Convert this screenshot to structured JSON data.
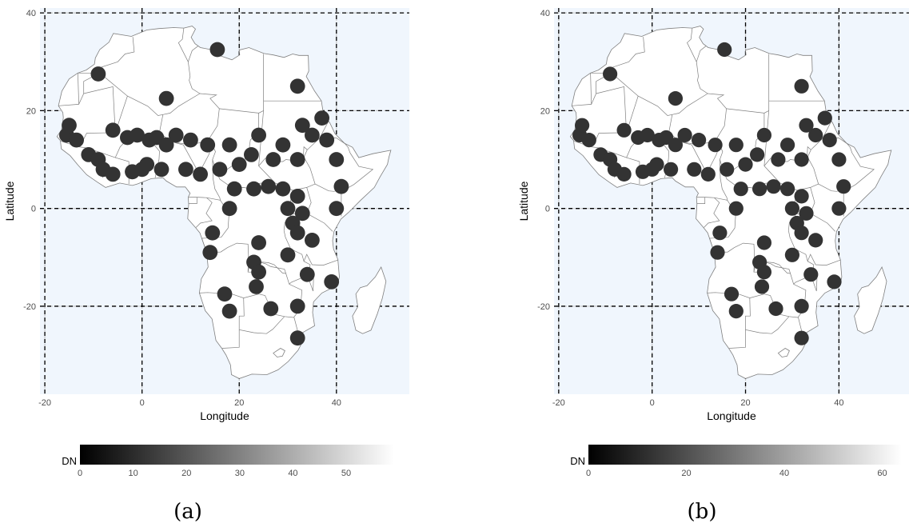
{
  "figure": {
    "colors": {
      "panel_background": "#f0f6fd",
      "land_fill": "#ffffff",
      "border_line": "#7f7f7f",
      "hotspot_fill": "#333333",
      "major_grid": "#000000",
      "minor_grid": "#c8c8c8",
      "legend_low": "#000000",
      "legend_high": "#ffffff"
    },
    "panels": [
      {
        "caption": "(a)",
        "chart_data": {
          "type": "map",
          "region": "Africa",
          "xlabel": "Longitude",
          "ylabel": "Latitude",
          "xlim": [
            -21,
            55
          ],
          "ylim": [
            -38,
            41
          ],
          "x_ticks": [
            -20,
            0,
            20,
            40
          ],
          "y_ticks": [
            -20,
            0,
            20,
            40
          ],
          "x_tick_labels": [
            "-20",
            "0",
            "20",
            "40"
          ],
          "y_tick_labels": [
            "-20",
            "0",
            "20",
            "40"
          ],
          "grid": true,
          "legend": {
            "title": "DN",
            "position": "bottom",
            "range": [
              0,
              59
            ],
            "ticks": [
              0,
              10,
              20,
              30,
              40,
              50
            ],
            "tick_labels": [
              "0",
              "10",
              "20",
              "30",
              "40",
              "50"
            ]
          },
          "hotspots": [
            [
              -15.5,
              15
            ],
            [
              -15,
              17
            ],
            [
              -13.5,
              14
            ],
            [
              -11,
              11
            ],
            [
              -9,
              10
            ],
            [
              -8,
              8
            ],
            [
              -6,
              7
            ],
            [
              -9,
              27.5
            ],
            [
              -6,
              16
            ],
            [
              -3,
              14.5
            ],
            [
              -1,
              15
            ],
            [
              1.5,
              14
            ],
            [
              3,
              14.5
            ],
            [
              5,
              13
            ],
            [
              -2,
              7.5
            ],
            [
              0,
              8
            ],
            [
              1,
              9
            ],
            [
              4,
              8
            ],
            [
              5,
              22.5
            ],
            [
              7,
              15
            ],
            [
              10,
              14
            ],
            [
              13.5,
              13
            ],
            [
              9,
              8
            ],
            [
              12,
              7
            ],
            [
              16,
              8
            ],
            [
              20,
              9
            ],
            [
              22.5,
              11
            ],
            [
              24,
              15
            ],
            [
              18,
              13
            ],
            [
              27,
              10
            ],
            [
              29,
              13
            ],
            [
              32,
              10
            ],
            [
              35,
              15
            ],
            [
              33,
              17
            ],
            [
              37,
              18.5
            ],
            [
              38,
              14
            ],
            [
              40,
              10
            ],
            [
              15.5,
              32.5
            ],
            [
              32,
              25
            ],
            [
              19,
              4
            ],
            [
              23,
              4
            ],
            [
              26,
              4.5
            ],
            [
              29,
              4
            ],
            [
              32,
              2.5
            ],
            [
              30,
              0
            ],
            [
              33,
              -1
            ],
            [
              31,
              -3
            ],
            [
              32,
              -5
            ],
            [
              18,
              0
            ],
            [
              14.5,
              -5
            ],
            [
              14,
              -9
            ],
            [
              24,
              -7
            ],
            [
              30,
              -9.5
            ],
            [
              35,
              -6.5
            ],
            [
              41,
              4.5
            ],
            [
              40,
              0
            ],
            [
              23,
              -11
            ],
            [
              24,
              -13
            ],
            [
              23.5,
              -16
            ],
            [
              17,
              -17.5
            ],
            [
              18,
              -21
            ],
            [
              26.5,
              -20.5
            ],
            [
              32,
              -20
            ],
            [
              34,
              -13.5
            ],
            [
              39,
              -15
            ],
            [
              32,
              -26.5
            ]
          ]
        }
      },
      {
        "caption": "(b)",
        "chart_data": {
          "type": "map",
          "region": "Africa",
          "xlabel": "Longitude",
          "ylabel": "Latitude",
          "xlim": [
            -21,
            55
          ],
          "ylim": [
            -38,
            41
          ],
          "x_ticks": [
            -20,
            0,
            20,
            40
          ],
          "y_ticks": [
            -20,
            0,
            20,
            40
          ],
          "x_tick_labels": [
            "-20",
            "0",
            "20",
            "40"
          ],
          "y_tick_labels": [
            "-20",
            "0",
            "20",
            "40"
          ],
          "grid": true,
          "legend": {
            "title": "DN",
            "position": "bottom",
            "range": [
              0,
              64
            ],
            "ticks": [
              0,
              20,
              40,
              60
            ],
            "tick_labels": [
              "0",
              "20",
              "40",
              "60"
            ]
          },
          "hotspots": [
            [
              -15.5,
              15
            ],
            [
              -15,
              17
            ],
            [
              -13.5,
              14
            ],
            [
              -11,
              11
            ],
            [
              -9,
              10
            ],
            [
              -8,
              8
            ],
            [
              -6,
              7
            ],
            [
              -9,
              27.5
            ],
            [
              -6,
              16
            ],
            [
              -3,
              14.5
            ],
            [
              -1,
              15
            ],
            [
              1.5,
              14
            ],
            [
              3,
              14.5
            ],
            [
              5,
              13
            ],
            [
              -2,
              7.5
            ],
            [
              0,
              8
            ],
            [
              1,
              9
            ],
            [
              4,
              8
            ],
            [
              5,
              22.5
            ],
            [
              7,
              15
            ],
            [
              10,
              14
            ],
            [
              13.5,
              13
            ],
            [
              9,
              8
            ],
            [
              12,
              7
            ],
            [
              16,
              8
            ],
            [
              20,
              9
            ],
            [
              22.5,
              11
            ],
            [
              24,
              15
            ],
            [
              18,
              13
            ],
            [
              27,
              10
            ],
            [
              29,
              13
            ],
            [
              32,
              10
            ],
            [
              35,
              15
            ],
            [
              33,
              17
            ],
            [
              37,
              18.5
            ],
            [
              38,
              14
            ],
            [
              40,
              10
            ],
            [
              15.5,
              32.5
            ],
            [
              32,
              25
            ],
            [
              19,
              4
            ],
            [
              23,
              4
            ],
            [
              26,
              4.5
            ],
            [
              29,
              4
            ],
            [
              32,
              2.5
            ],
            [
              30,
              0
            ],
            [
              33,
              -1
            ],
            [
              31,
              -3
            ],
            [
              32,
              -5
            ],
            [
              18,
              0
            ],
            [
              14.5,
              -5
            ],
            [
              14,
              -9
            ],
            [
              24,
              -7
            ],
            [
              30,
              -9.5
            ],
            [
              35,
              -6.5
            ],
            [
              41,
              4.5
            ],
            [
              40,
              0
            ],
            [
              23,
              -11
            ],
            [
              24,
              -13
            ],
            [
              23.5,
              -16
            ],
            [
              17,
              -17.5
            ],
            [
              18,
              -21
            ],
            [
              26.5,
              -20.5
            ],
            [
              32,
              -20
            ],
            [
              34,
              -13.5
            ],
            [
              39,
              -15
            ],
            [
              32,
              -26.5
            ]
          ]
        }
      }
    ]
  }
}
